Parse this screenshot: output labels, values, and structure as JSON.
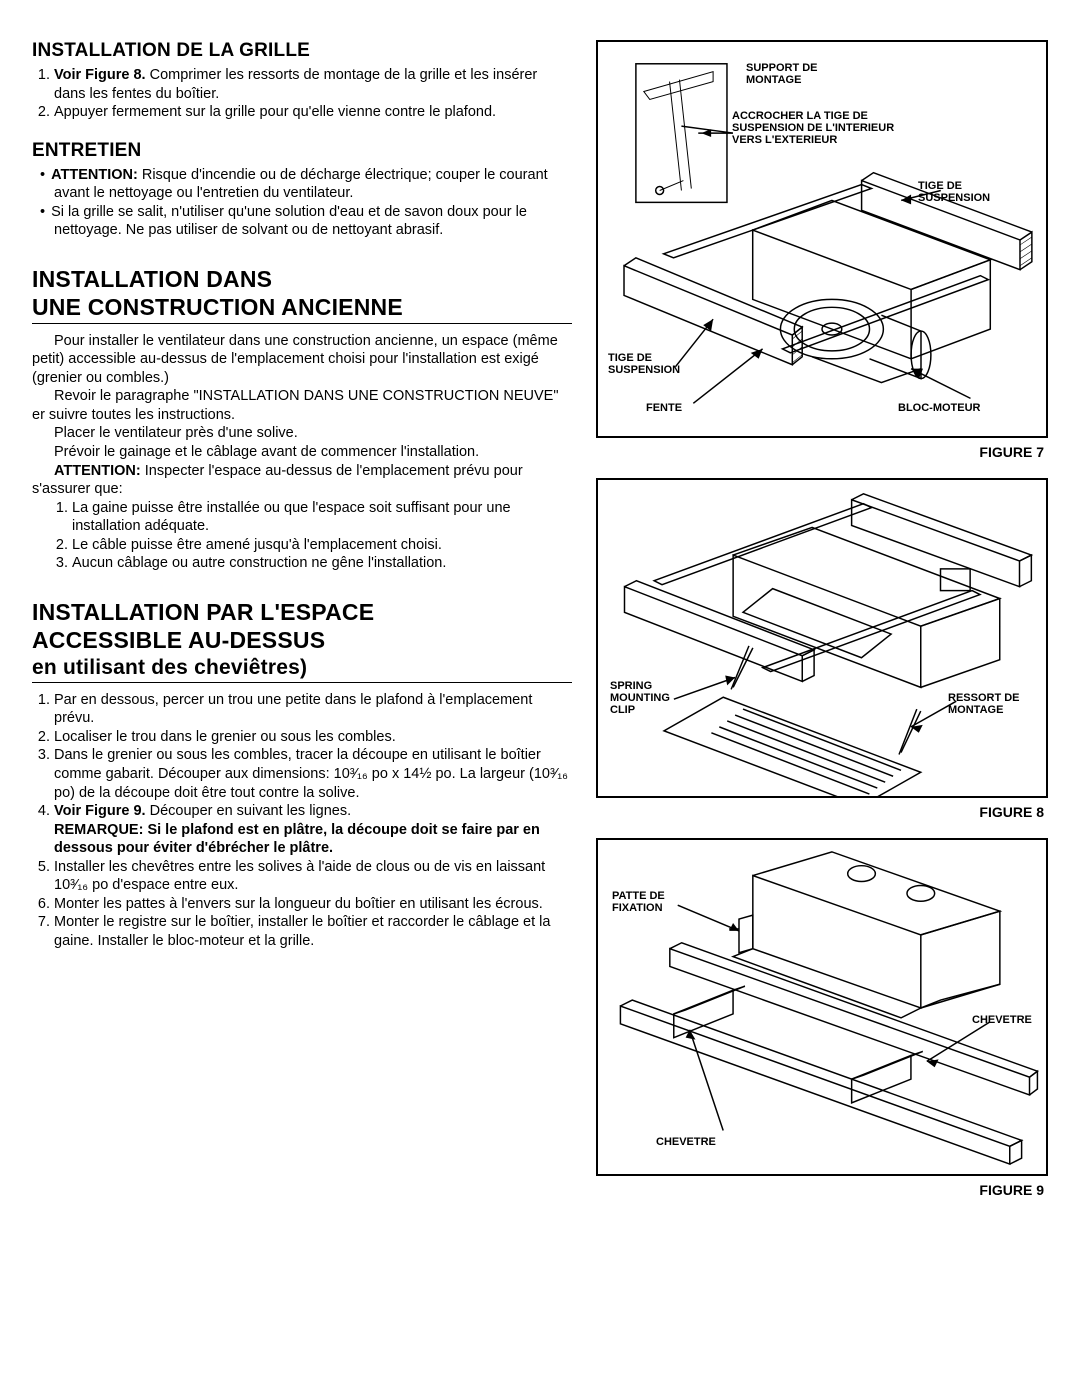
{
  "left": {
    "section1": {
      "title": "INSTALLATION DE LA GRILLE",
      "items": [
        "<b>Voir Figure 8.</b> Comprimer les ressorts de montage de la grille et les insérer dans les fentes du boîtier.",
        "Appuyer fermement sur la grille pour qu'elle vienne contre le plafond."
      ]
    },
    "section2": {
      "title": "ENTRETIEN",
      "bullets": [
        "<b>ATTENTION:</b> Risque d'incendie ou de décharge électrique; couper le courant avant le nettoyage ou l'entretien du ventilateur.",
        "Si la grille se salit, n'utiliser qu'une solution d'eau et de savon doux pour le nettoyage. Ne pas utiliser de solvant ou de nettoyant abrasif."
      ]
    },
    "section3": {
      "title1": "INSTALLATION DANS",
      "title2": "UNE CONSTRUCTION ANCIENNE",
      "paras": [
        "Pour installer le ventilateur dans une construction ancienne, un espace (même petit) accessible au-dessus de l'emplacement choisi pour l'installation est exigé (grenier ou combles.)",
        "Revoir le paragraphe \"INSTALLATION DANS UNE CONSTRUCTION NEUVE\" er suivre toutes les instructions.",
        "Placer le ventilateur près d'une solive.",
        "Prévoir le gainage et le câblage avant de commencer l'installation.",
        "<b>ATTENTION:</b> Inspecter l'espace au-dessus de l'emplacement prévu pour s'assurer que:"
      ],
      "items": [
        "La gaine puisse être installée ou que l'espace soit suffisant pour une installation adéquate.",
        "Le câble puisse être amené jusqu'à l'emplacement choisi.",
        "Aucun câblage ou autre construction ne gêne l'installation."
      ]
    },
    "section4": {
      "title1": "INSTALLATION PAR L'ESPACE",
      "title2": "ACCESSIBLE AU-DESSUS",
      "title3": "en utilisant des cheviêtres)",
      "items": [
        "Par en dessous, percer un trou une petite dans le plafond à l'emplacement prévu.",
        "Localiser le trou dans le grenier ou sous les combles.",
        "Dans le grenier ou sous les combles, tracer la découpe en utilisant le boîtier comme gabarit. Découper aux dimensions: 10³⁄₁₆ po x 14½ po. La largeur (10³⁄₁₆ po) de la découpe doit être tout contre la solive.",
        "<b>Voir Figure 9.</b> Découper en suivant les lignes.<br><b>REMARQUE: Si le plafond est en plâtre, la découpe doit se faire par en dessous pour éviter d'ébrécher le plâtre.</b>",
        "Installer les chevêtres entre les solives à l'aide de clous ou de vis en laissant 10³⁄₁₆ po d'espace entre eux.",
        "Monter les pattes à l'envers sur la longueur du boîtier en utilisant les écrous.",
        "Monter le registre sur le boîtier, installer le boîtier et raccorder le câblage et la gaine. Installer le bloc-moteur et la grille."
      ]
    }
  },
  "figures": {
    "fig7": {
      "caption": "FIGURE 7",
      "labels": {
        "support": "SUPPORT DE\nMONTAGE",
        "accrocher": "ACCROCHER LA TIGE DE\nSUSPENSION DE L'INTERIEUR\nVERS L'EXTERIEUR",
        "tige_r": "TIGE DE\nSUSPENSION",
        "tige_l": "TIGE DE\nSUSPENSION",
        "fente": "FENTE",
        "bloc": "BLOC-MOTEUR"
      }
    },
    "fig8": {
      "caption": "FIGURE 8",
      "labels": {
        "spring": "SPRING\nMOUNTING\nCLIP",
        "ressort": "RESSORT DE\nMONTAGE"
      }
    },
    "fig9": {
      "caption": "FIGURE 9",
      "labels": {
        "patte": "PATTE DE\nFIXATION",
        "chevetre_r": "CHEVETRE",
        "chevetre_b": "CHEVETRE"
      }
    }
  }
}
